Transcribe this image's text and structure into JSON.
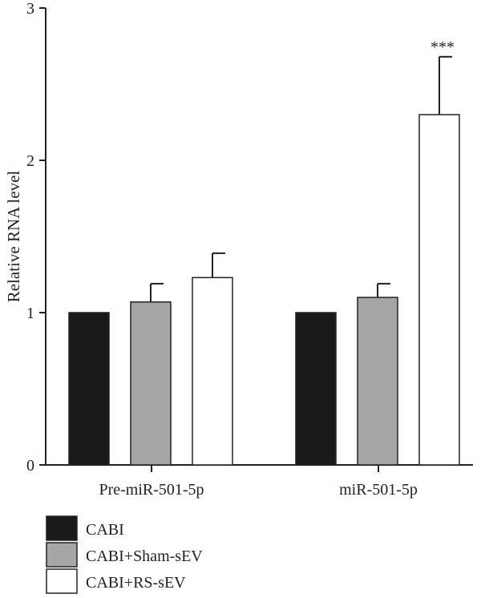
{
  "chart_data": {
    "type": "bar",
    "ylabel": "Relative RNA level",
    "xlabel": "",
    "ylim": [
      0,
      3
    ],
    "yticks": [
      0,
      1,
      2,
      3
    ],
    "categories": [
      "Pre-miR-501-5p",
      "miR-501-5p"
    ],
    "series": [
      {
        "name": "CABI",
        "color": "#1a1a1a",
        "values": [
          1.0,
          1.0
        ],
        "errors": [
          0,
          0
        ]
      },
      {
        "name": "CABI+Sham-sEV",
        "color": "#a6a6a6",
        "values": [
          1.07,
          1.1
        ],
        "errors": [
          0.12,
          0.09
        ]
      },
      {
        "name": "CABI+RS-sEV",
        "color": "#ffffff",
        "values": [
          1.23,
          2.3
        ],
        "errors": [
          0.16,
          0.38
        ]
      }
    ],
    "annotations": [
      {
        "category": 1,
        "series": 2,
        "text": "***"
      }
    ],
    "legend_position": "bottom-left",
    "grid": false
  }
}
